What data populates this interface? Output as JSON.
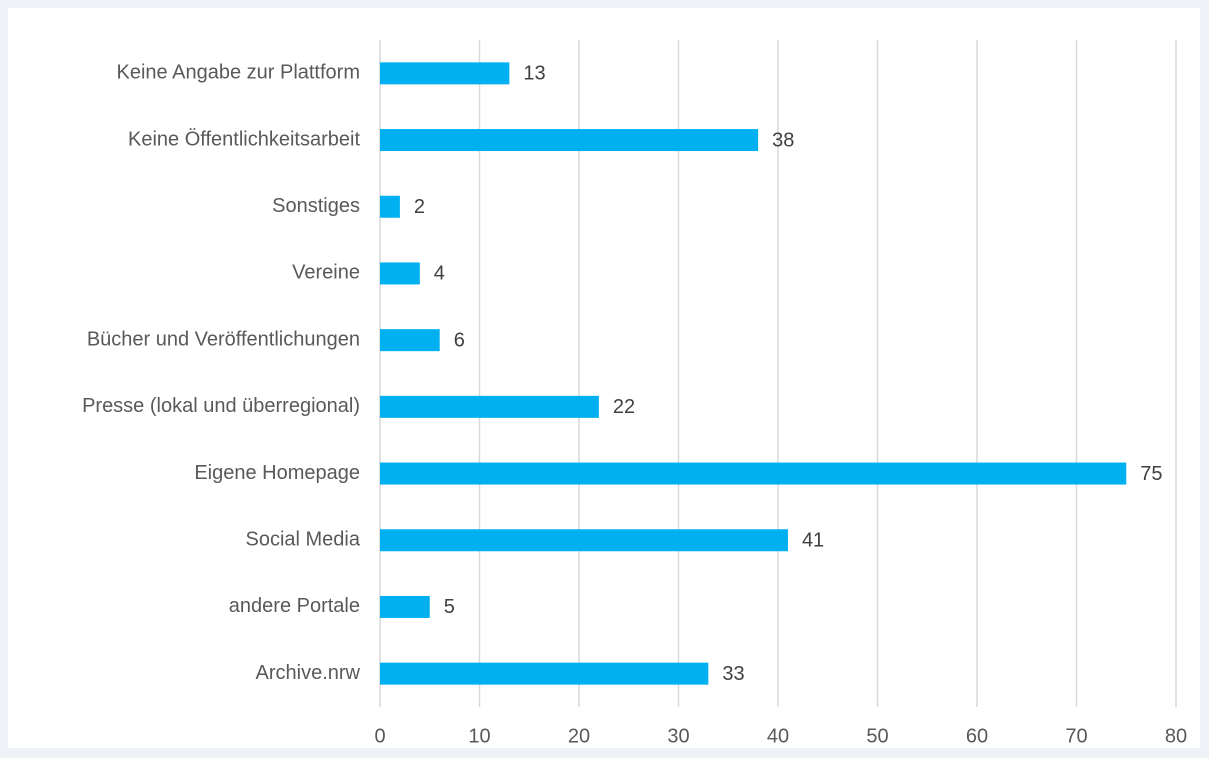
{
  "chart_data": {
    "type": "bar",
    "orientation": "horizontal",
    "categories": [
      "Keine Angabe zur Plattform",
      "Keine Öffentlichkeitsarbeit",
      "Sonstiges",
      "Vereine",
      "Bücher und Veröffentlichungen",
      "Presse (lokal und überregional)",
      "Eigene Homepage",
      "Social Media",
      "andere Portale",
      "Archive.nrw"
    ],
    "values": [
      13,
      38,
      2,
      4,
      6,
      22,
      75,
      41,
      5,
      33
    ],
    "color": "#00b0f0",
    "xlim": [
      0,
      80
    ],
    "xticks": [
      0,
      10,
      20,
      30,
      40,
      50,
      60,
      70,
      80
    ],
    "grid": true
  }
}
